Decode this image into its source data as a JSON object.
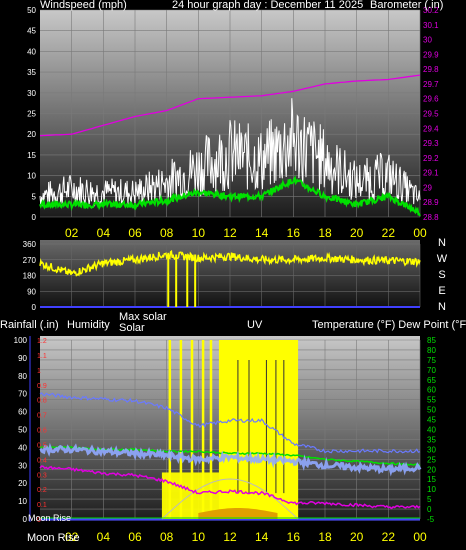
{
  "header": {
    "wind_label": "Windspeed (mph)",
    "title": "24 hour graph day : December 11 2025",
    "baro_label": "Barometer (.in)"
  },
  "x_ticks": [
    "02",
    "04",
    "06",
    "08",
    "10",
    "12",
    "14",
    "16",
    "18",
    "20",
    "22",
    "00"
  ],
  "colors": {
    "wind": "#ffffff",
    "wind_avg": "#00e000",
    "barometer": "#e000e0",
    "direction": "#ffff00",
    "solar": "#ffff00",
    "uv": "#e0a000",
    "temperature": "#90a8ff",
    "dewpoint": "#e000e0",
    "humidity": "#6a7aff",
    "rain": "#00e000",
    "moon": "#ffffff"
  },
  "chart_data": [
    {
      "type": "line",
      "ylabel": "Windspeed (mph)",
      "ylim": [
        0,
        50
      ],
      "y_ticks": [
        "0",
        "5",
        "10",
        "15",
        "20",
        "25",
        "30",
        "35",
        "40",
        "45",
        "50"
      ],
      "y2label": "Barometer (.in)",
      "y2lim": [
        28.8,
        30.2
      ],
      "y2_ticks": [
        "28.8",
        "28.9",
        "29",
        "29.1",
        "29.2",
        "29.3",
        "29.4",
        "29.5",
        "29.6",
        "29.7",
        "29.8",
        "29.9",
        "30",
        "30.1",
        "30.2"
      ],
      "x": [
        0,
        2,
        4,
        6,
        8,
        10,
        12,
        14,
        16,
        18,
        20,
        22,
        24
      ],
      "series": [
        {
          "key": "gust",
          "values": [
            6,
            8,
            7,
            7,
            10,
            14,
            18,
            16,
            22,
            16,
            10,
            12,
            5
          ]
        },
        {
          "key": "avg",
          "values": [
            3,
            3,
            3,
            3,
            4,
            6,
            5,
            5,
            9,
            5,
            3,
            5,
            1
          ]
        },
        {
          "key": "barometer",
          "values": [
            29.35,
            29.36,
            29.42,
            29.48,
            29.52,
            29.6,
            29.61,
            29.62,
            29.65,
            29.7,
            29.72,
            29.73,
            29.76
          ]
        }
      ]
    },
    {
      "type": "line",
      "ylim": [
        0,
        360
      ],
      "y_ticks": [
        "0",
        "90",
        "180",
        "270",
        "360"
      ],
      "compass": [
        "N",
        "W",
        "S",
        "E",
        "N"
      ],
      "x": [
        0,
        2,
        4,
        6,
        8,
        10,
        12,
        14,
        16,
        18,
        20,
        22,
        24
      ],
      "series": [
        {
          "key": "direction",
          "values": [
            250,
            190,
            250,
            270,
            300,
            280,
            290,
            270,
            270,
            280,
            270,
            265,
            260
          ]
        }
      ]
    },
    {
      "type": "line",
      "labels": {
        "rain": "Rainfall (.in)",
        "humidity": "Humidity",
        "max_solar": "Max solar",
        "solar": "Solar",
        "uv": "UV",
        "temp": "Temperature (°F) Dew Point (°F)",
        "moon_set": "Moon Rise",
        "moon_rise": "Moon Rise"
      },
      "y_left1_ticks": [
        "0",
        "10",
        "20",
        "30",
        "40",
        "50",
        "60",
        "70",
        "80",
        "90",
        "100"
      ],
      "y_left2_ticks": [
        "0",
        "0.1",
        "0.2",
        "0.3",
        "0.4",
        "0.5",
        "0.6",
        "0.7",
        "0.8",
        "0.9",
        "1",
        "1.1",
        "1.2"
      ],
      "y_right_ticks": [
        "-5",
        "0",
        "5",
        "10",
        "15",
        "20",
        "25",
        "30",
        "35",
        "40",
        "45",
        "50",
        "55",
        "60",
        "65",
        "70",
        "75",
        "80",
        "85"
      ],
      "temp_lim": [
        -5,
        85
      ],
      "x": [
        0,
        2,
        4,
        6,
        8,
        10,
        12,
        14,
        16,
        18,
        20,
        22,
        24
      ],
      "series": [
        {
          "key": "temperature",
          "values": [
            30,
            30,
            29,
            28,
            27,
            25,
            26,
            25,
            24,
            22,
            21,
            20,
            21
          ]
        },
        {
          "key": "dewpoint",
          "values": [
            21,
            20,
            18,
            17,
            14,
            8,
            9,
            8,
            3,
            3,
            2,
            1,
            1
          ]
        },
        {
          "key": "humidity",
          "values": [
            70,
            68,
            67,
            66,
            62,
            52,
            55,
            55,
            42,
            38,
            38,
            38,
            38
          ]
        },
        {
          "key": "green",
          "values": [
            31,
            31,
            30,
            30,
            29,
            29,
            28,
            28,
            27,
            25,
            24,
            23,
            22
          ]
        }
      ],
      "solar_window": [
        7.7,
        16.3
      ]
    }
  ]
}
